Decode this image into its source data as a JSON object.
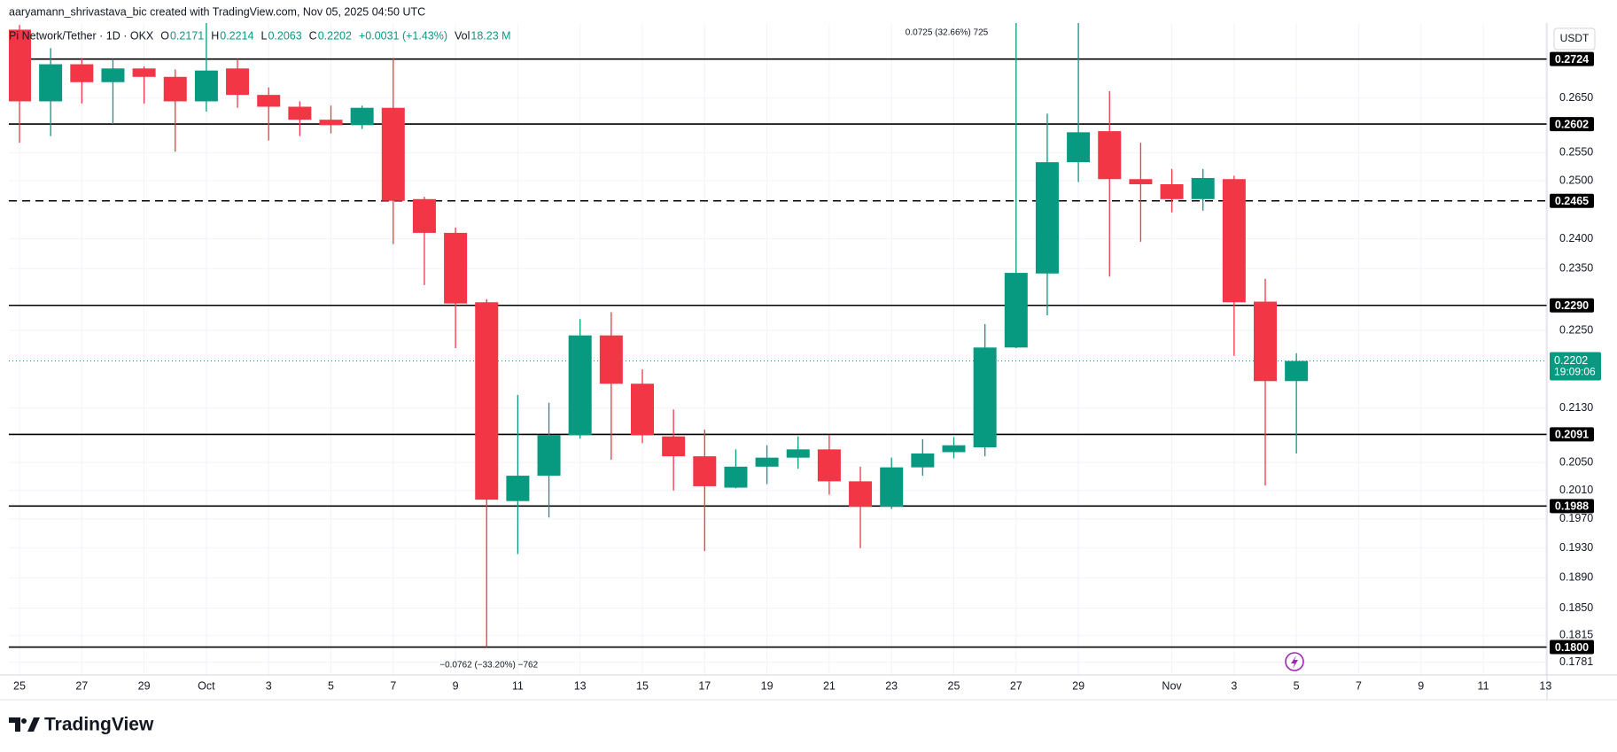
{
  "header": {
    "title": "aaryamann_shrivastava_bic created with TradingView.com, Nov 05, 2025 04:50 UTC"
  },
  "legend": {
    "symbol": "Pi Network/Tether · 1D · OKX",
    "o_label": "O",
    "h_label": "H",
    "l_label": "L",
    "c_label": "C",
    "change": "+0.0031 (+1.43%)",
    "vol_label": "Vol",
    "volume": "18.23 M"
  },
  "chart_data": {
    "type": "candlestick",
    "currency": "USDT",
    "categories": [
      "25",
      null,
      "27",
      null,
      "29",
      null,
      "Oct",
      null,
      "3",
      null,
      "5",
      null,
      "7",
      null,
      "9",
      null,
      "11",
      null,
      "13",
      null,
      "15",
      null,
      "17",
      null,
      "19",
      null,
      "21",
      null,
      "23",
      null,
      "25",
      null,
      "27",
      null,
      "29",
      null,
      null,
      "Nov",
      null,
      "3",
      null,
      "5"
    ],
    "future_categories": [
      null,
      "7",
      null,
      "9",
      null,
      "11",
      null,
      "13"
    ],
    "open": [
      0.2781,
      0.2644,
      0.2714,
      0.268,
      0.2706,
      0.269,
      0.2644,
      0.2706,
      0.2656,
      0.2634,
      0.261,
      0.26,
      0.2632,
      0.2468,
      0.241,
      0.2295,
      0.1995,
      0.2031,
      0.209,
      0.2242,
      0.2167,
      0.2088,
      0.2059,
      0.2014,
      0.2044,
      0.2057,
      0.2069,
      0.2023,
      0.1987,
      0.2043,
      0.2065,
      0.2072,
      0.2223,
      0.2342,
      0.2533,
      0.2589,
      0.2503,
      0.2494,
      0.2468,
      0.2503,
      0.2296,
      0.2171
    ],
    "high": [
      0.279,
      0.2745,
      0.2726,
      0.2724,
      0.271,
      0.2704,
      0.2794,
      0.2724,
      0.267,
      0.2644,
      0.2636,
      0.2636,
      0.2726,
      0.2472,
      0.2419,
      0.23,
      0.215,
      0.2138,
      0.2268,
      0.2279,
      0.2189,
      0.2128,
      0.2098,
      0.2069,
      0.2075,
      0.2088,
      0.209,
      0.2044,
      0.2057,
      0.2084,
      0.2087,
      0.226,
      0.2794,
      0.2621,
      0.2794,
      0.2663,
      0.2568,
      0.2521,
      0.2521,
      0.2509,
      0.2333,
      0.2214
    ],
    "low": [
      0.2568,
      0.258,
      0.264,
      0.2602,
      0.264,
      0.2552,
      0.2625,
      0.2632,
      0.2572,
      0.258,
      0.2585,
      0.2593,
      0.2391,
      0.2323,
      0.2222,
      0.18,
      0.1922,
      0.1972,
      0.2085,
      0.2054,
      0.2078,
      0.201,
      0.1926,
      0.2013,
      0.2019,
      0.2041,
      0.2004,
      0.193,
      0.1984,
      0.2031,
      0.2056,
      0.2059,
      0.2222,
      0.2274,
      0.2498,
      0.2337,
      0.2395,
      0.2445,
      0.2448,
      0.221,
      0.2017,
      0.2063
    ],
    "close": [
      0.2644,
      0.2714,
      0.268,
      0.2706,
      0.269,
      0.2644,
      0.2702,
      0.2656,
      0.2634,
      0.261,
      0.26,
      0.2632,
      0.2465,
      0.241,
      0.2293,
      0.1997,
      0.2031,
      0.209,
      0.2242,
      0.2167,
      0.209,
      0.2059,
      0.2016,
      0.2044,
      0.2057,
      0.2069,
      0.2023,
      0.1987,
      0.2043,
      0.2063,
      0.2075,
      0.2223,
      0.2343,
      0.2533,
      0.2587,
      0.2503,
      0.2494,
      0.2468,
      0.2505,
      0.2295,
      0.2171,
      0.2202
    ],
    "up_color": "#089981",
    "down_color": "#f23645",
    "ylim": [
      0.1765,
      0.2794
    ],
    "log_scale": true,
    "grid": true,
    "yticks": [
      {
        "value": 0.265,
        "label": "0.2650"
      },
      {
        "value": 0.255,
        "label": "0.2550"
      },
      {
        "value": 0.25,
        "label": "0.2500"
      },
      {
        "value": 0.24,
        "label": "0.2400"
      },
      {
        "value": 0.235,
        "label": "0.2350"
      },
      {
        "value": 0.225,
        "label": "0.2250"
      },
      {
        "value": 0.213,
        "label": "0.2130"
      },
      {
        "value": 0.205,
        "label": "0.2050"
      },
      {
        "value": 0.201,
        "label": "0.2010"
      },
      {
        "value": 0.197,
        "label": "0.1970"
      },
      {
        "value": 0.193,
        "label": "0.1930"
      },
      {
        "value": 0.189,
        "label": "0.1890"
      },
      {
        "value": 0.185,
        "label": "0.1850"
      },
      {
        "value": 0.1815,
        "label": "0.1815"
      },
      {
        "value": 0.1781,
        "label": "0.1781"
      }
    ],
    "levels": [
      {
        "value": 0.2724,
        "label": "0.2724",
        "dashed": false
      },
      {
        "value": 0.2602,
        "label": "0.2602",
        "dashed": false
      },
      {
        "value": 0.2465,
        "label": "0.2465",
        "dashed": true
      },
      {
        "value": 0.229,
        "label": "0.2290",
        "dashed": false
      },
      {
        "value": 0.2091,
        "label": "0.2091",
        "dashed": false
      },
      {
        "value": 0.1988,
        "label": "0.1988",
        "dashed": false
      },
      {
        "value": 0.18,
        "label": "0.1800",
        "dashed": false
      }
    ],
    "countdown": "19:09:06",
    "annotations": [
      "0.0725 (32.66%) 725",
      "−0.0762 (−33.20%) −762"
    ]
  },
  "footer": {
    "brand": "TradingView"
  }
}
